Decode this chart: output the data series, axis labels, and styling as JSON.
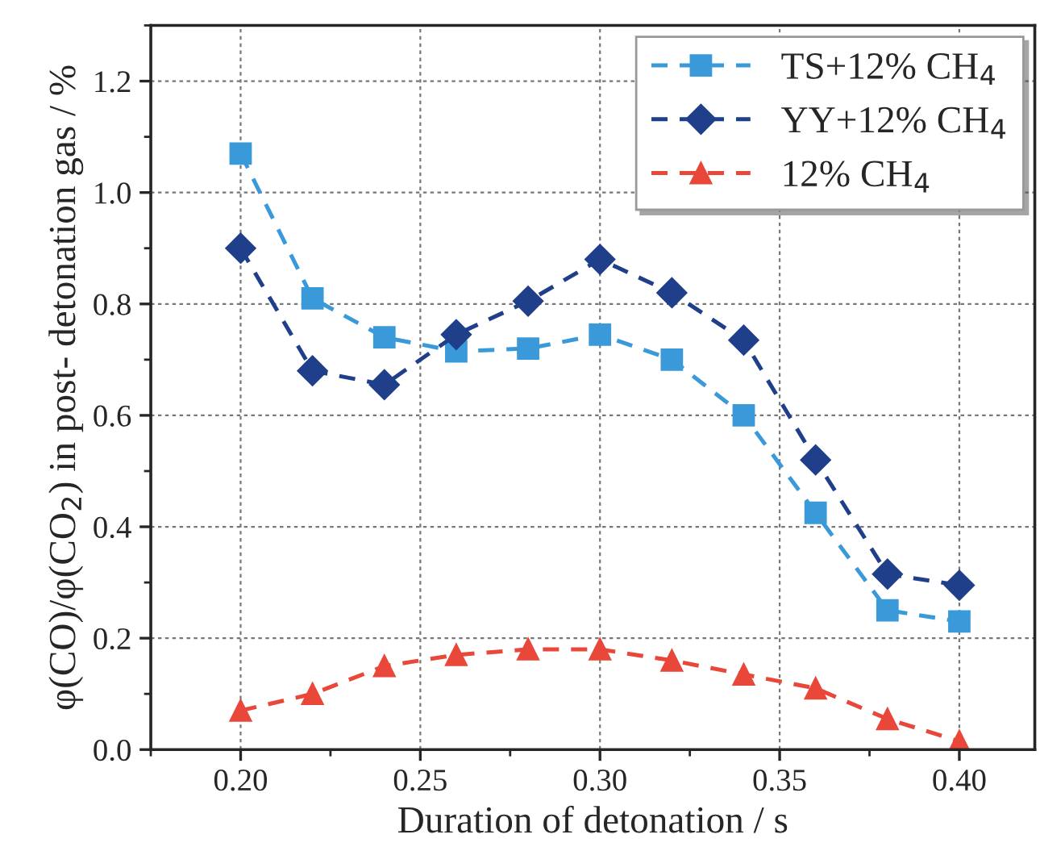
{
  "chart_data": {
    "type": "line",
    "xlabel": "Duration of detonation / s",
    "ylabel": "φ(CO)/φ(CO$_{2}$) in post- detonation gas / %",
    "x": [
      0.2,
      0.22,
      0.24,
      0.26,
      0.28,
      0.3,
      0.32,
      0.34,
      0.36,
      0.38,
      0.4
    ],
    "series": [
      {
        "name": "TS+12% CH$_{4}$",
        "color": "#3a9ad9",
        "marker": "square",
        "values": [
          1.07,
          0.81,
          0.74,
          0.715,
          0.72,
          0.745,
          0.7,
          0.6,
          0.425,
          0.25,
          0.23
        ]
      },
      {
        "name": "YY+12% CH$_{4}$",
        "color": "#1f3f8a",
        "marker": "diamond",
        "values": [
          0.9,
          0.68,
          0.655,
          0.745,
          0.805,
          0.88,
          0.82,
          0.735,
          0.52,
          0.315,
          0.295
        ]
      },
      {
        "name": "12% CH$_{4}$",
        "color": "#e8473a",
        "marker": "triangle",
        "values": [
          0.07,
          0.1,
          0.15,
          0.17,
          0.18,
          0.18,
          0.16,
          0.135,
          0.11,
          0.055,
          0.015
        ]
      }
    ],
    "xlim": [
      0.175,
      0.421
    ],
    "xticks": [
      {
        "value": 0.2,
        "label": "0.20"
      },
      {
        "value": 0.25,
        "label": "0.25"
      },
      {
        "value": 0.3,
        "label": "0.30"
      },
      {
        "value": 0.35,
        "label": "0.35"
      },
      {
        "value": 0.4,
        "label": "0.40"
      }
    ],
    "ylim": [
      0,
      1.3
    ],
    "yticks": [
      {
        "value": 0,
        "label": "0.0"
      },
      0.2,
      0.4,
      0.6,
      0.8,
      {
        "value": 1.0,
        "label": "1.0"
      },
      1.2
    ],
    "grid": true,
    "legend": "top right",
    "line_style": "dashed"
  }
}
